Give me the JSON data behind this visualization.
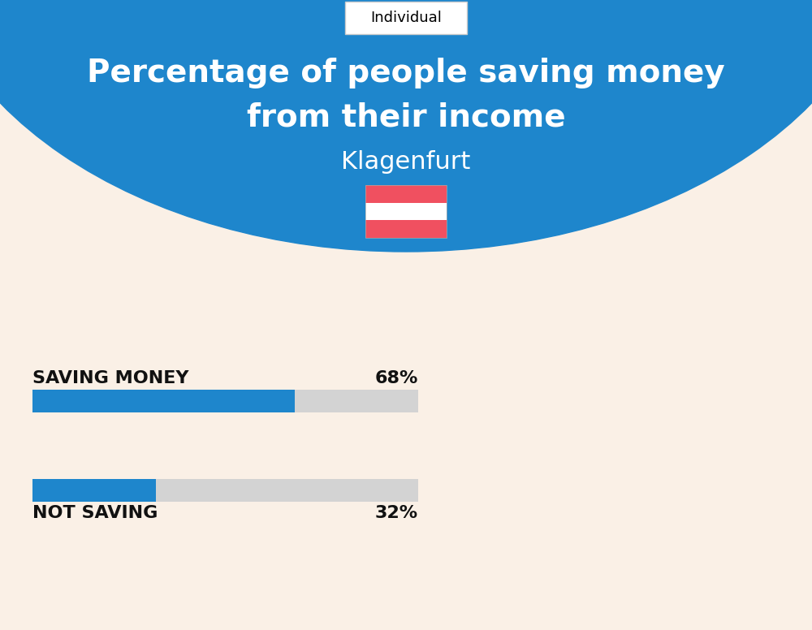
{
  "title_line1": "Percentage of people saving money",
  "title_line2": "from their income",
  "city": "Klagenfurt",
  "tab_label": "Individual",
  "bg_color": "#FAF0E6",
  "header_color": "#1E86CC",
  "bar_active_color": "#1E86CC",
  "bar_bg_color": "#D3D3D3",
  "categories": [
    "SAVING MONEY",
    "NOT SAVING"
  ],
  "values": [
    68,
    32
  ],
  "title_color": "#FFFFFF",
  "city_color": "#FFFFFF",
  "label_color": "#111111",
  "value_color": "#111111",
  "flag_red": "#F05060",
  "flag_white": "#FFFFFF",
  "tab_fontsize": 13,
  "title_fontsize": 28,
  "city_fontsize": 22,
  "label_fontsize": 16,
  "value_fontsize": 16
}
